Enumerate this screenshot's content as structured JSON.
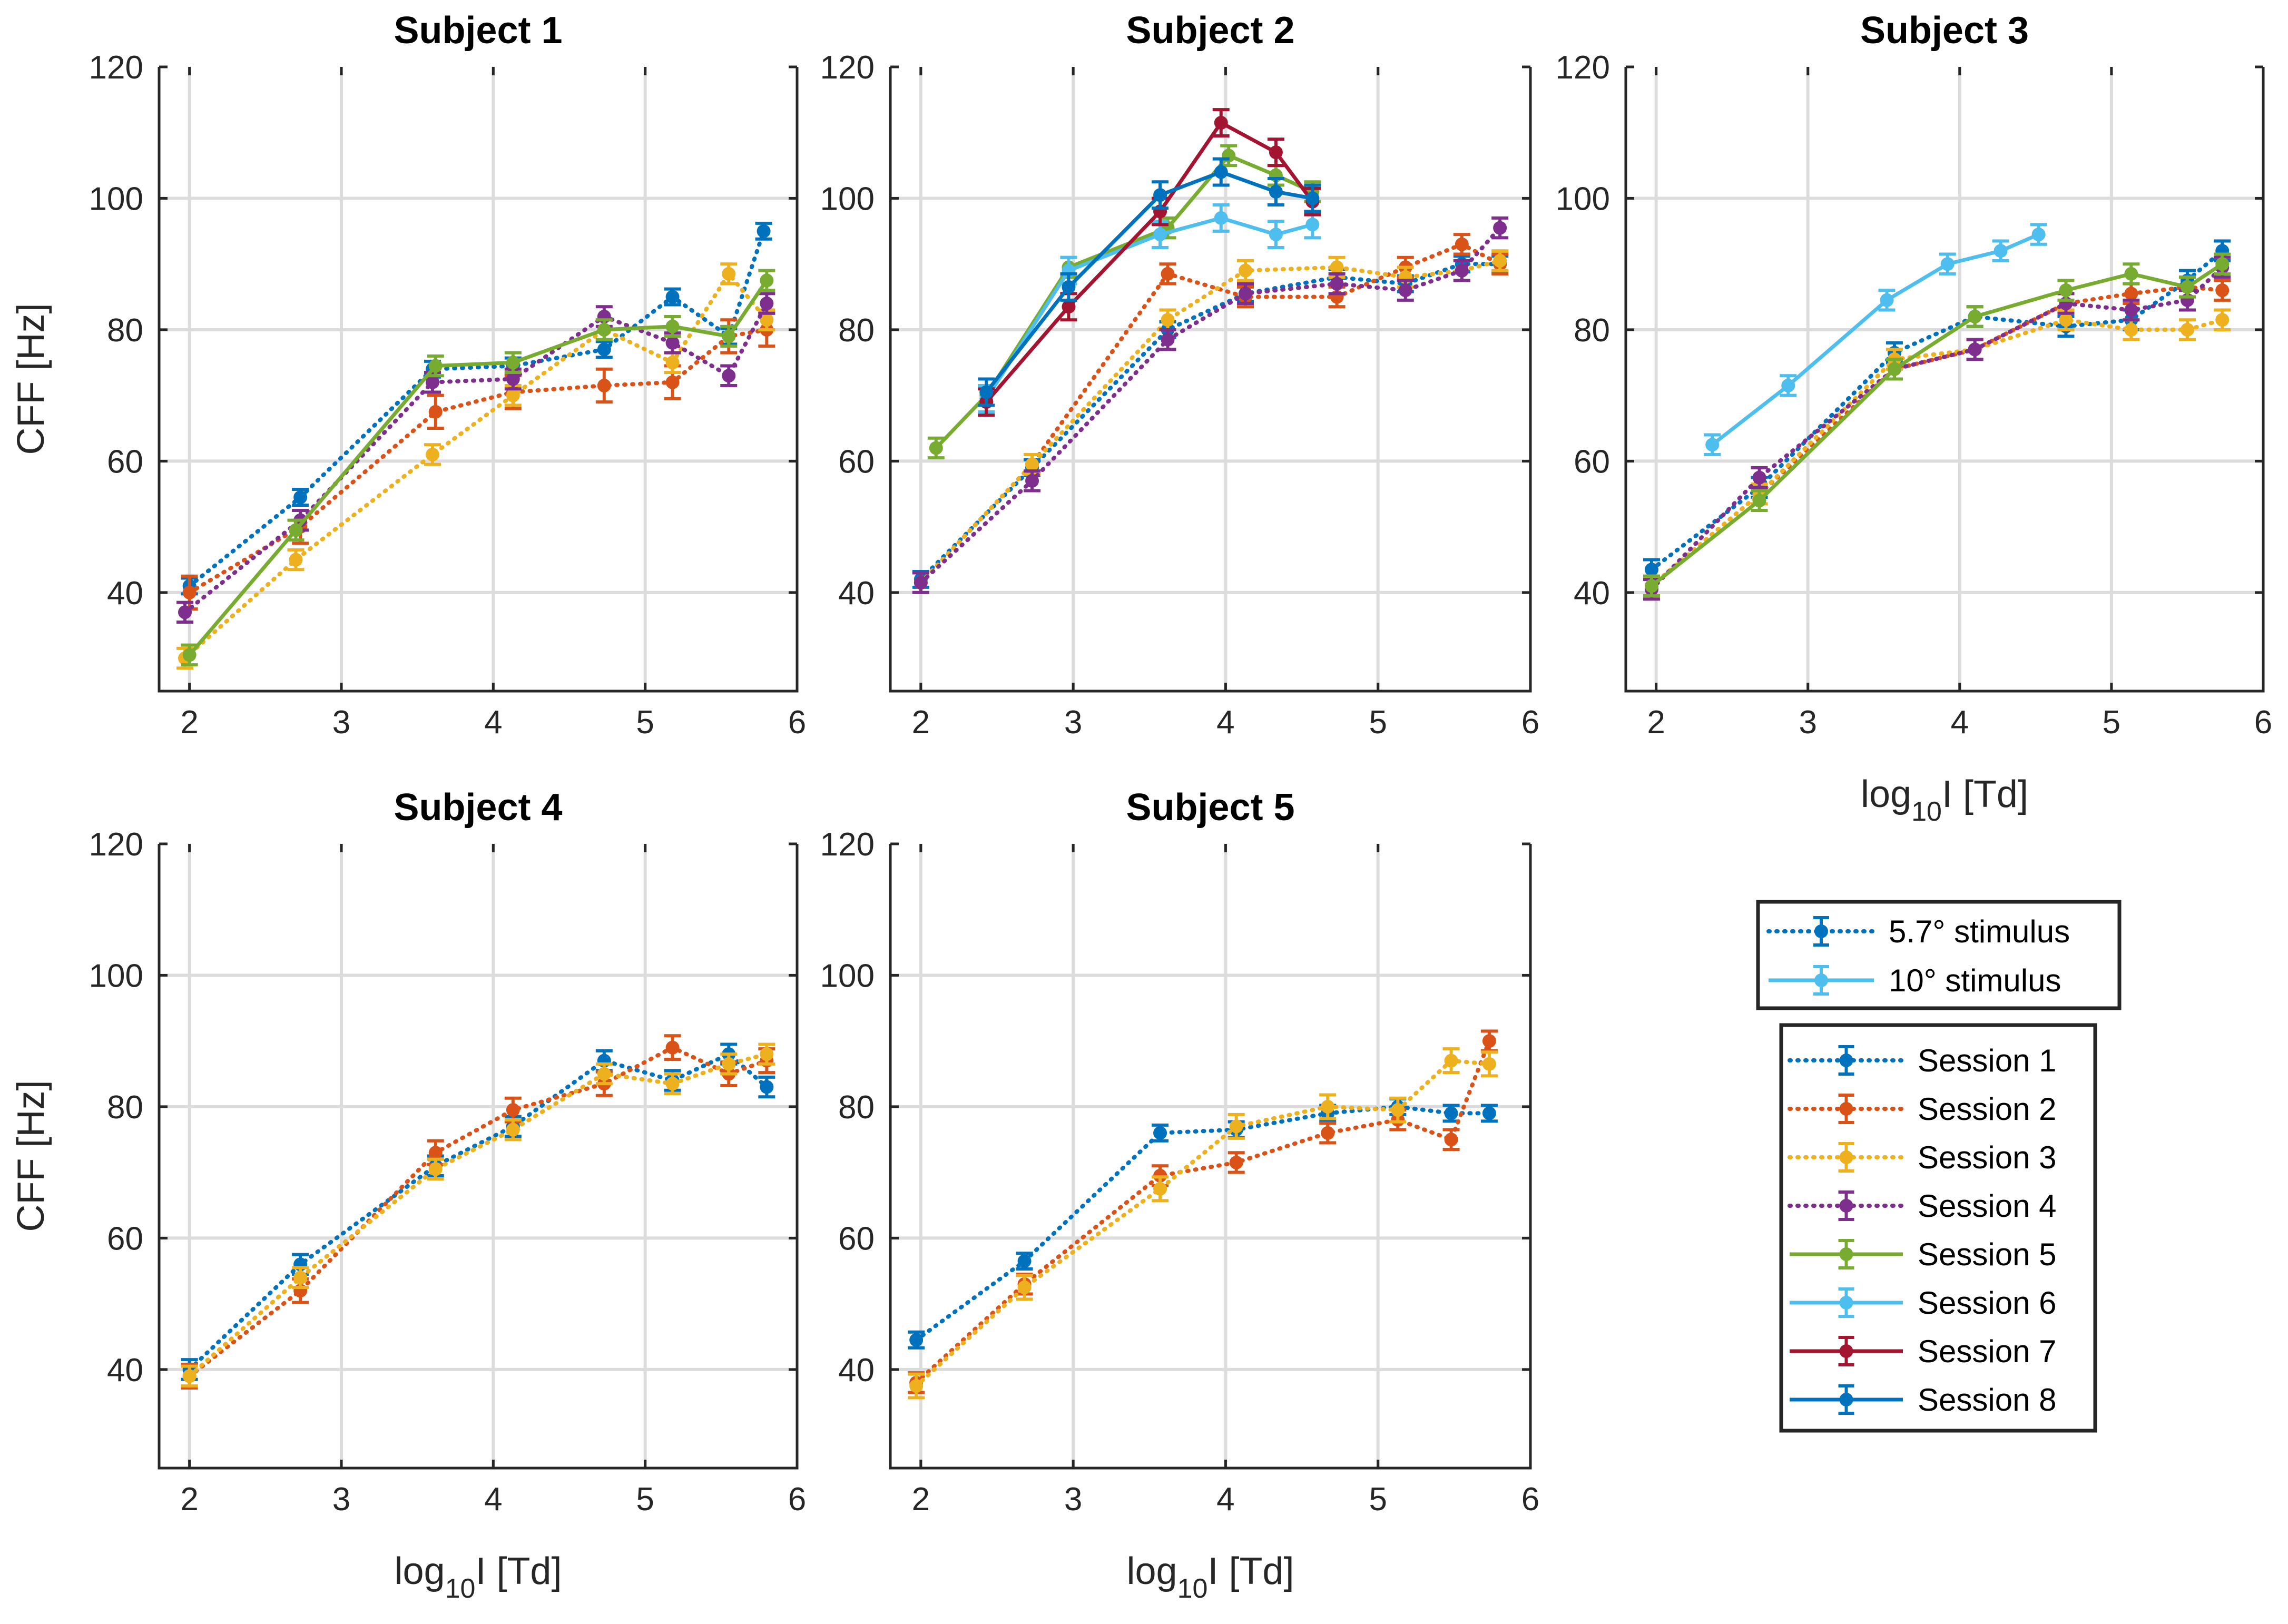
{
  "chart_data": {
    "type": "line",
    "panels": [
      {
        "title": "Subject 1",
        "xlim": [
          1.8,
          6
        ],
        "ylim": [
          25,
          120
        ],
        "xticks": [
          2,
          3,
          4,
          5,
          6
        ],
        "yticks": [
          40,
          60,
          80,
          100,
          120
        ],
        "ylabel": "CFF [Hz]",
        "xlabel": "",
        "series": [
          {
            "name": "Session 1",
            "x": [
              2.0,
              2.73,
              3.6,
              4.13,
              4.73,
              5.18,
              5.55,
              5.78
            ],
            "y": [
              41,
              54.5,
              74,
              74.5,
              77,
              85,
              79,
              95
            ],
            "err": 1.2
          },
          {
            "name": "Session 2",
            "x": [
              2.0,
              2.73,
              3.62,
              4.13,
              4.73,
              5.18,
              5.55,
              5.8
            ],
            "y": [
              40,
              50,
              67.5,
              70.5,
              71.5,
              72,
              79,
              80
            ],
            "err": 2.5
          },
          {
            "name": "Session 3",
            "x": [
              1.97,
              2.7,
              3.6,
              4.13,
              4.73,
              5.18,
              5.55,
              5.8
            ],
            "y": [
              30,
              45,
              61,
              70,
              80,
              75,
              88.5,
              81.5
            ],
            "err": 1.5
          },
          {
            "name": "Session 4",
            "x": [
              1.97,
              2.73,
              3.6,
              4.13,
              4.73,
              5.18,
              5.55,
              5.8
            ],
            "y": [
              37,
              51,
              72,
              72.5,
              82,
              78,
              73,
              84
            ],
            "err": 1.5
          },
          {
            "name": "Session 5",
            "x": [
              2.0,
              2.7,
              3.62,
              4.13,
              4.73,
              5.18,
              5.55,
              5.8
            ],
            "y": [
              30.5,
              49.5,
              74.5,
              75,
              80,
              80.5,
              79,
              87.5
            ],
            "err": 1.5
          }
        ]
      },
      {
        "title": "Subject 2",
        "xlim": [
          1.8,
          6
        ],
        "ylim": [
          25,
          120
        ],
        "xticks": [
          2,
          3,
          4,
          5,
          6
        ],
        "yticks": [
          40,
          60,
          80,
          100,
          120
        ],
        "ylabel": "",
        "xlabel": "",
        "series": [
          {
            "name": "Session 1",
            "x": [
              2.0,
              2.73,
              3.62,
              4.13,
              4.73,
              5.18,
              5.55,
              5.8
            ],
            "y": [
              42,
              59,
              80,
              85.5,
              88,
              87,
              90,
              90
            ],
            "err": 1.2
          },
          {
            "name": "Session 2",
            "x": [
              2.0,
              2.73,
              3.62,
              4.13,
              4.73,
              5.18,
              5.55,
              5.8
            ],
            "y": [
              41.5,
              59.5,
              88.5,
              85,
              85,
              89.5,
              93,
              90
            ],
            "err": 1.5
          },
          {
            "name": "Session 3",
            "x": [
              2.0,
              2.73,
              3.62,
              4.13,
              4.73,
              5.18,
              5.55,
              5.8
            ],
            "y": [
              41.5,
              59.5,
              81.5,
              89,
              89.5,
              88,
              89,
              90.5
            ],
            "err": 1.5
          },
          {
            "name": "Session 4",
            "x": [
              2.0,
              2.73,
              3.62,
              4.13,
              4.73,
              5.18,
              5.55,
              5.8
            ],
            "y": [
              41.5,
              57,
              78.5,
              85.5,
              87,
              86,
              89,
              95.5
            ],
            "err": 1.5
          },
          {
            "name": "Session 5",
            "x": [
              2.1,
              2.43,
              2.97,
              3.62,
              4.02,
              4.33,
              4.57
            ],
            "y": [
              62,
              70,
              89.5,
              95.5,
              106.5,
              103.5,
              101
            ],
            "err": 1.5
          },
          {
            "name": "Session 6",
            "x": [
              2.43,
              2.97,
              3.57,
              3.97,
              4.33,
              4.57
            ],
            "y": [
              69.5,
              89,
              94.5,
              97,
              94.5,
              96
            ],
            "err": 2.0
          },
          {
            "name": "Session 7",
            "x": [
              2.43,
              2.97,
              3.57,
              3.97,
              4.33,
              4.57
            ],
            "y": [
              69,
              83.5,
              98,
              111.5,
              107,
              99.5
            ],
            "err": 2.0
          },
          {
            "name": "Session 8",
            "x": [
              2.43,
              2.97,
              3.57,
              3.97,
              4.33,
              4.57
            ],
            "y": [
              70.5,
              86.5,
              100.5,
              104,
              101,
              100
            ],
            "err": 2.0
          }
        ]
      },
      {
        "title": "Subject 3",
        "xlim": [
          1.8,
          6
        ],
        "ylim": [
          25,
          120
        ],
        "xticks": [
          2,
          3,
          4,
          5,
          6
        ],
        "yticks": [
          40,
          60,
          80,
          100,
          120
        ],
        "ylabel": "",
        "xlabel": "log10I  [Td]",
        "series": [
          {
            "name": "Session 1",
            "x": [
              1.97,
              2.68,
              3.57,
              4.1,
              4.7,
              5.13,
              5.5,
              5.73
            ],
            "y": [
              43.5,
              56,
              76.5,
              82,
              80.5,
              81.5,
              87.5,
              92
            ],
            "err": 1.5
          },
          {
            "name": "Session 2",
            "x": [
              1.97,
              2.68,
              3.57,
              4.1,
              4.7,
              5.13,
              5.5,
              5.73
            ],
            "y": [
              41,
              55,
              74,
              77,
              84,
              85.5,
              86.5,
              86
            ],
            "err": 1.5
          },
          {
            "name": "Session 3",
            "x": [
              1.97,
              2.68,
              3.57,
              4.1,
              4.7,
              5.13,
              5.5,
              5.73
            ],
            "y": [
              41,
              55,
              75.5,
              77,
              81.5,
              80,
              80,
              81.5
            ],
            "err": 1.5
          },
          {
            "name": "Session 4",
            "x": [
              1.97,
              2.68,
              3.57,
              4.1,
              4.7,
              5.13,
              5.5,
              5.73
            ],
            "y": [
              40.5,
              57.5,
              74,
              77,
              84,
              83,
              84.5,
              89.5
            ],
            "err": 1.5
          },
          {
            "name": "Session 5",
            "x": [
              1.97,
              2.68,
              3.57,
              4.1,
              4.7,
              5.13,
              5.5,
              5.73
            ],
            "y": [
              41,
              54,
              74,
              82,
              86,
              88.5,
              86.5,
              90
            ],
            "err": 1.5
          },
          {
            "name": "Session 6",
            "x": [
              2.37,
              2.87,
              3.52,
              3.92,
              4.27,
              4.52
            ],
            "y": [
              62.5,
              71.5,
              84.5,
              90,
              92,
              94.5
            ],
            "err": 1.5
          }
        ]
      },
      {
        "title": "Subject 4",
        "xlim": [
          1.8,
          6
        ],
        "ylim": [
          25,
          120
        ],
        "xticks": [
          2,
          3,
          4,
          5,
          6
        ],
        "yticks": [
          40,
          60,
          80,
          100,
          120
        ],
        "ylabel": "CFF [Hz]",
        "xlabel": "log10I  [Td]",
        "series": [
          {
            "name": "Session 1",
            "x": [
              2.0,
              2.73,
              3.62,
              4.13,
              4.73,
              5.18,
              5.55,
              5.8
            ],
            "y": [
              40,
              56,
              71,
              77,
              87,
              84,
              88,
              83
            ],
            "err": 1.5
          },
          {
            "name": "Session 2",
            "x": [
              2.0,
              2.73,
              3.62,
              4.13,
              4.73,
              5.18,
              5.55,
              5.8
            ],
            "y": [
              39,
              52,
              73,
              79.5,
              83.5,
              89,
              85,
              87
            ],
            "err": 1.8
          },
          {
            "name": "Session 3",
            "x": [
              2.0,
              2.73,
              3.62,
              4.13,
              4.73,
              5.18,
              5.55,
              5.8
            ],
            "y": [
              39,
              54,
              70.5,
              76.5,
              85,
              83.5,
              86.5,
              88
            ],
            "err": 1.5
          }
        ]
      },
      {
        "title": "Subject 5",
        "xlim": [
          1.8,
          6
        ],
        "ylim": [
          25,
          120
        ],
        "xticks": [
          2,
          3,
          4,
          5,
          6
        ],
        "yticks": [
          40,
          60,
          80,
          100,
          120
        ],
        "ylabel": "",
        "xlabel": "log10I  [Td]",
        "series": [
          {
            "name": "Session 1",
            "x": [
              1.97,
              2.68,
              3.57,
              4.07,
              4.67,
              5.13,
              5.48,
              5.73
            ],
            "y": [
              44.5,
              56.5,
              76,
              76.5,
              79,
              80,
              79,
              79
            ],
            "err": 1.2
          },
          {
            "name": "Session 2",
            "x": [
              1.97,
              2.68,
              3.57,
              4.07,
              4.67,
              5.13,
              5.48,
              5.73
            ],
            "y": [
              38,
              53,
              69.5,
              71.5,
              76,
              78,
              75,
              90
            ],
            "err": 1.5
          },
          {
            "name": "Session 3",
            "x": [
              1.97,
              2.68,
              3.57,
              4.07,
              4.67,
              5.13,
              5.48,
              5.73
            ],
            "y": [
              37.5,
              52.5,
              67.5,
              77,
              80,
              79.5,
              87,
              86.5
            ],
            "err": 1.8
          }
        ]
      }
    ]
  },
  "axis_text": {
    "ylabel": "CFF [Hz]",
    "xlabel_main": "log",
    "xlabel_sub": "10",
    "xlabel_rest": "I  [Td]"
  },
  "legend_stimulus": [
    {
      "label": "5.7° stimulus",
      "color": "#0072BD",
      "style": "dotted"
    },
    {
      "label": "10° stimulus",
      "color": "#4DBEEE",
      "style": "solid"
    }
  ],
  "legend_sessions": [
    {
      "label": "Session 1",
      "color": "#0072BD",
      "style": "dotted"
    },
    {
      "label": "Session 2",
      "color": "#D95319",
      "style": "dotted"
    },
    {
      "label": "Session 3",
      "color": "#EDB120",
      "style": "dotted"
    },
    {
      "label": "Session 4",
      "color": "#7E2F8E",
      "style": "dotted"
    },
    {
      "label": "Session 5",
      "color": "#77AC30",
      "style": "solid"
    },
    {
      "label": "Session 6",
      "color": "#4DBEEE",
      "style": "solid"
    },
    {
      "label": "Session 7",
      "color": "#A2142F",
      "style": "solid"
    },
    {
      "label": "Session 8",
      "color": "#0072BD",
      "style": "solid"
    }
  ]
}
